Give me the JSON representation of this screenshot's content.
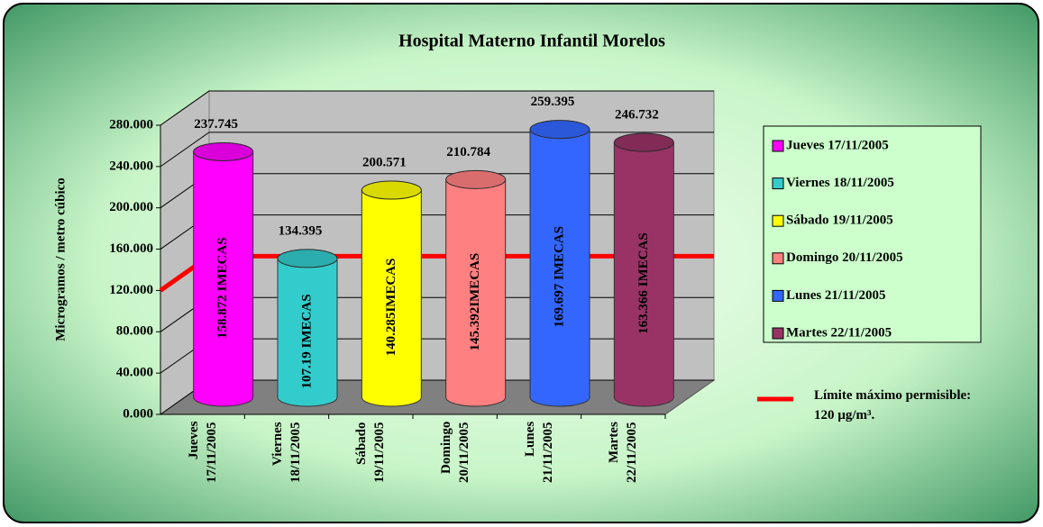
{
  "chart_data": {
    "type": "bar3d",
    "title": "Hospital Materno Infantil Morelos",
    "y_label": "Microgramos / metro cúbico",
    "categories": [
      "Jueves 17/11/2005",
      "Viernes 18/11/2005",
      "Sábado 19/11/2005",
      "Domingo 20/11/2005",
      "Lunes 21/11/2005",
      "Martes 22/11/2005"
    ],
    "values": [
      237.745,
      134.395,
      200.571,
      210.784,
      259.395,
      246.732
    ],
    "colors": [
      "#ff00ff",
      "#33cccc",
      "#ffff00",
      "#ff8080",
      "#3366ff",
      "#993366"
    ],
    "inner_labels": [
      "158.872 IMECAS",
      "107.19 IMECAS",
      "140.285IMECAS",
      "145.392IMECAS",
      "169.697 IMECAS",
      "163.366 IMECAS"
    ],
    "limit": {
      "value": 120,
      "label": "Límite máximo permisible: 120 µg/m³.",
      "color": "#ff0000"
    },
    "ylim": [
      0,
      280
    ],
    "yticks": [
      {
        "value": 0,
        "label": "0.000"
      },
      {
        "value": 40,
        "label": "40.000"
      },
      {
        "value": 80,
        "label": "80.000"
      },
      {
        "value": 120,
        "label": "120.000"
      },
      {
        "value": 160,
        "label": "160.000"
      },
      {
        "value": 200,
        "label": "200.000"
      },
      {
        "value": 240,
        "label": "240.000"
      },
      {
        "value": 280,
        "label": "280.000"
      }
    ],
    "grid": true
  }
}
